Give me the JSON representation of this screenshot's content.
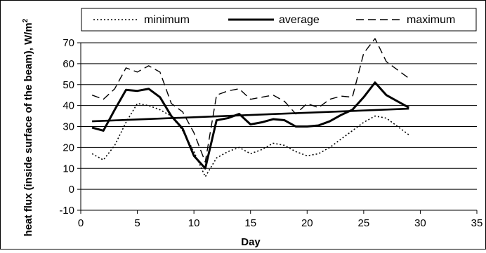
{
  "chart_data": {
    "type": "line",
    "title": "",
    "xlabel": "Day",
    "ylabel": "heat flux (inside surface of the beam), W/m",
    "ylabel_superscript": "2",
    "xlim": [
      0,
      35
    ],
    "ylim": [
      -10,
      70
    ],
    "x_ticks": [
      0,
      5,
      10,
      15,
      20,
      25,
      30,
      35
    ],
    "y_ticks": [
      -10,
      0,
      10,
      20,
      30,
      40,
      50,
      60,
      70
    ],
    "grid": "horizontal major",
    "legend_position": "top",
    "x": [
      1,
      2,
      3,
      4,
      5,
      6,
      7,
      8,
      9,
      10,
      11,
      12,
      13,
      14,
      15,
      16,
      17,
      18,
      19,
      20,
      21,
      22,
      23,
      24,
      25,
      26,
      27,
      28,
      29
    ],
    "series": [
      {
        "name": "minimum",
        "style": "dotted",
        "color": "#000000",
        "values": [
          17,
          14,
          21,
          32,
          41,
          40,
          38,
          35,
          28,
          18,
          6,
          15,
          18,
          20,
          17,
          19,
          22,
          21,
          18,
          16,
          17,
          20,
          24,
          28,
          32,
          35,
          34,
          30,
          26
        ]
      },
      {
        "name": "average",
        "style": "solid",
        "color": "#000000",
        "values": [
          29.5,
          28,
          38,
          47.5,
          47,
          48,
          44,
          35,
          29,
          16,
          10,
          33,
          34,
          36,
          31,
          32,
          33.5,
          33,
          30,
          30,
          30.5,
          32.5,
          35.5,
          38,
          44,
          51,
          45,
          42,
          39
        ]
      },
      {
        "name": "maximum",
        "style": "dashed",
        "color": "#000000",
        "values": [
          45,
          43,
          48,
          58,
          56,
          59,
          56,
          41,
          37,
          27,
          13,
          45,
          47,
          48,
          43,
          44,
          45,
          42,
          36,
          41,
          39,
          43,
          44.5,
          44,
          65,
          72,
          61,
          57,
          53
        ]
      }
    ],
    "trendline": {
      "series": "average",
      "x": [
        1,
        29
      ],
      "values": [
        32.5,
        38.5
      ]
    }
  }
}
